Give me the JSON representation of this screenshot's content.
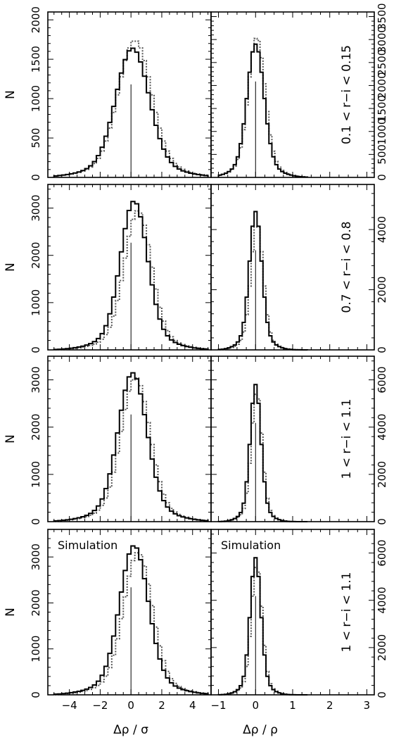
{
  "figure": {
    "y_axis_label": "N",
    "x_axis_label_left": "Δρ / σ",
    "x_axis_label_right": "Δρ / ρ"
  },
  "chart_data": [
    {
      "type": "histogram-grid-row",
      "row_label": "0.1 < r−i < 0.15",
      "annotation": "",
      "left": {
        "xlim": [
          -5.4,
          5.2
        ],
        "ylim": [
          0,
          2100
        ],
        "yticks": [
          0,
          500,
          1000,
          1500,
          2000
        ],
        "ytick_labels": [
          "0",
          "500",
          "1000",
          "1500",
          "2000"
        ],
        "xticks": [
          -4,
          -2,
          0,
          2,
          4
        ],
        "xtick_labels": [
          "−4",
          "−2",
          "0",
          "2",
          "4"
        ],
        "ytick_side": "left",
        "center": 0.1,
        "width": 1.05,
        "peak": 1640,
        "dotted_peak": 1740,
        "dotted_shift": 0.15,
        "bins": [
          -5,
          5,
          0.25
        ]
      },
      "right": {
        "xlim": [
          -1.2,
          3.2
        ],
        "ylim": [
          0,
          3600
        ],
        "yticks": [
          0,
          500,
          1000,
          1500,
          2000,
          2500,
          3000,
          3500
        ],
        "ytick_labels": [
          "0",
          "500",
          "1000",
          "1500",
          "2000",
          "2500",
          "3000",
          "3500"
        ],
        "xticks": [
          -1,
          0,
          1,
          2,
          3
        ],
        "xtick_labels": [
          "−1",
          "0",
          "1",
          "2",
          "3"
        ],
        "ytick_side": "right",
        "center": 0.0,
        "width": 0.22,
        "peak": 2900,
        "dotted_peak": 3050,
        "dotted_shift": 0.03,
        "bins": [
          -1,
          1.4,
          0.08
        ]
      }
    },
    {
      "type": "histogram-grid-row",
      "row_label": "0.7 < r−i < 0.8",
      "annotation": "",
      "left": {
        "xlim": [
          -5.4,
          5.2
        ],
        "ylim": [
          0,
          3500
        ],
        "yticks": [
          0,
          1000,
          2000,
          3000
        ],
        "ytick_labels": [
          "0",
          "1000",
          "2000",
          "3000"
        ],
        "xticks": [
          -4,
          -2,
          0,
          2,
          4
        ],
        "xtick_labels": [
          "−4",
          "−2",
          "0",
          "2",
          "4"
        ],
        "ytick_side": "left",
        "center": 0.2,
        "width": 0.85,
        "peak": 3150,
        "dotted_peak": 2950,
        "dotted_shift": 0.25,
        "bins": [
          -5,
          5,
          0.25
        ]
      },
      "right": {
        "xlim": [
          -1.2,
          3.2
        ],
        "ylim": [
          0,
          5500
        ],
        "yticks": [
          0,
          2000,
          4000
        ],
        "ytick_labels": [
          "0",
          "2000",
          "4000"
        ],
        "xticks": [
          -1,
          0,
          1,
          2,
          3
        ],
        "xtick_labels": [
          "−1",
          "0",
          "1",
          "2",
          "3"
        ],
        "ytick_side": "right",
        "center": 0.0,
        "width": 0.16,
        "peak": 4600,
        "dotted_peak": 4200,
        "dotted_shift": 0.04,
        "bins": [
          -1,
          1.4,
          0.08
        ]
      }
    },
    {
      "type": "histogram-grid-row",
      "row_label": "1 < r−i < 1.1",
      "annotation": "",
      "left": {
        "xlim": [
          -5.4,
          5.2
        ],
        "ylim": [
          0,
          3500
        ],
        "yticks": [
          0,
          1000,
          2000,
          3000
        ],
        "ytick_labels": [
          "0",
          "1000",
          "2000",
          "3000"
        ],
        "xticks": [
          -4,
          -2,
          0,
          2,
          4
        ],
        "xtick_labels": [
          "−4",
          "−2",
          "0",
          "2",
          "4"
        ],
        "ytick_side": "left",
        "center": 0.1,
        "width": 0.9,
        "peak": 3150,
        "dotted_peak": 3050,
        "dotted_shift": 0.2,
        "bins": [
          -5,
          5,
          0.25
        ]
      },
      "right": {
        "xlim": [
          -1.2,
          3.2
        ],
        "ylim": [
          0,
          7000
        ],
        "yticks": [
          0,
          2000,
          4000,
          6000
        ],
        "ytick_labels": [
          "0",
          "2000",
          "4000",
          "6000"
        ],
        "xticks": [
          -1,
          0,
          1,
          2,
          3
        ],
        "xtick_labels": [
          "−1",
          "0",
          "1",
          "2",
          "3"
        ],
        "ytick_side": "right",
        "center": 0.0,
        "width": 0.14,
        "peak": 5800,
        "dotted_peak": 5500,
        "dotted_shift": 0.03,
        "bins": [
          -1,
          1.4,
          0.08
        ]
      }
    },
    {
      "type": "histogram-grid-row",
      "row_label": "1 < r−i < 1.1",
      "annotation": "Simulation",
      "left": {
        "xlim": [
          -5.4,
          5.2
        ],
        "ylim": [
          0,
          3600
        ],
        "yticks": [
          0,
          1000,
          2000,
          3000
        ],
        "ytick_labels": [
          "0",
          "1000",
          "2000",
          "3000"
        ],
        "xticks": [
          -4,
          -2,
          0,
          2,
          4
        ],
        "xtick_labels": [
          "−4",
          "−2",
          "0",
          "2",
          "4"
        ],
        "ytick_side": "left",
        "center": 0.2,
        "width": 0.9,
        "peak": 3250,
        "dotted_peak": 3100,
        "dotted_shift": 0.25,
        "bins": [
          -5,
          5,
          0.25
        ]
      },
      "right": {
        "xlim": [
          -1.2,
          3.2
        ],
        "ylim": [
          0,
          7000
        ],
        "yticks": [
          0,
          2000,
          4000,
          6000
        ],
        "ytick_labels": [
          "0",
          "2000",
          "4000",
          "6000"
        ],
        "xticks": [
          -1,
          0,
          1,
          2,
          3
        ],
        "xtick_labels": [
          "−1",
          "0",
          "1",
          "2",
          "3"
        ],
        "ytick_side": "right",
        "center": 0.0,
        "width": 0.14,
        "peak": 5800,
        "dotted_peak": 5500,
        "dotted_shift": 0.03,
        "bins": [
          -1,
          1.4,
          0.08
        ]
      }
    }
  ]
}
